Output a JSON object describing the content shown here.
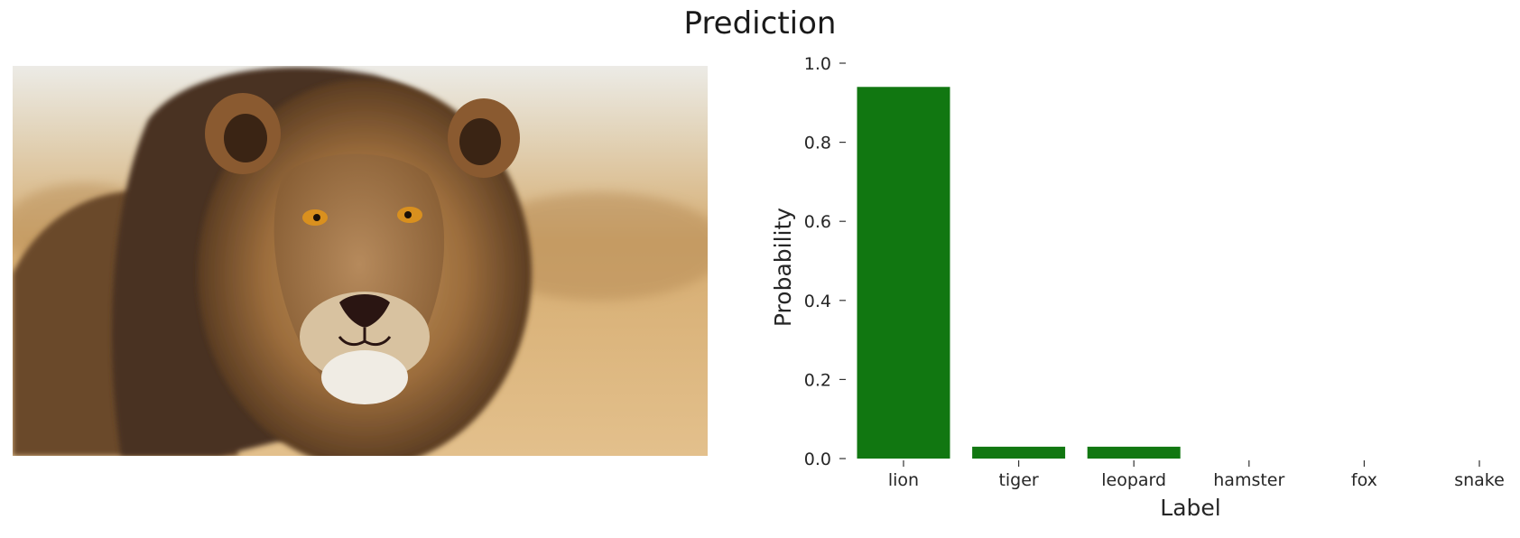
{
  "figure": {
    "title": "Prediction"
  },
  "photo": {
    "subject": "lion-photo"
  },
  "colors": {
    "bar": "#117711",
    "text": "#262626",
    "tick": "#333333"
  },
  "chart_data": {
    "type": "bar",
    "categories": [
      "lion",
      "tiger",
      "leopard",
      "hamster",
      "fox",
      "snake"
    ],
    "values": [
      0.94,
      0.03,
      0.03,
      0.0,
      0.0,
      0.0
    ],
    "title": "",
    "xlabel": "Label",
    "ylabel": "Probability",
    "ylim": [
      0,
      1.0
    ],
    "yticks": [
      0.0,
      0.2,
      0.4,
      0.6,
      0.8,
      1.0
    ],
    "ytick_labels": [
      "0.0",
      "0.2",
      "0.4",
      "0.6",
      "0.8",
      "1.0"
    ],
    "grid": false
  }
}
